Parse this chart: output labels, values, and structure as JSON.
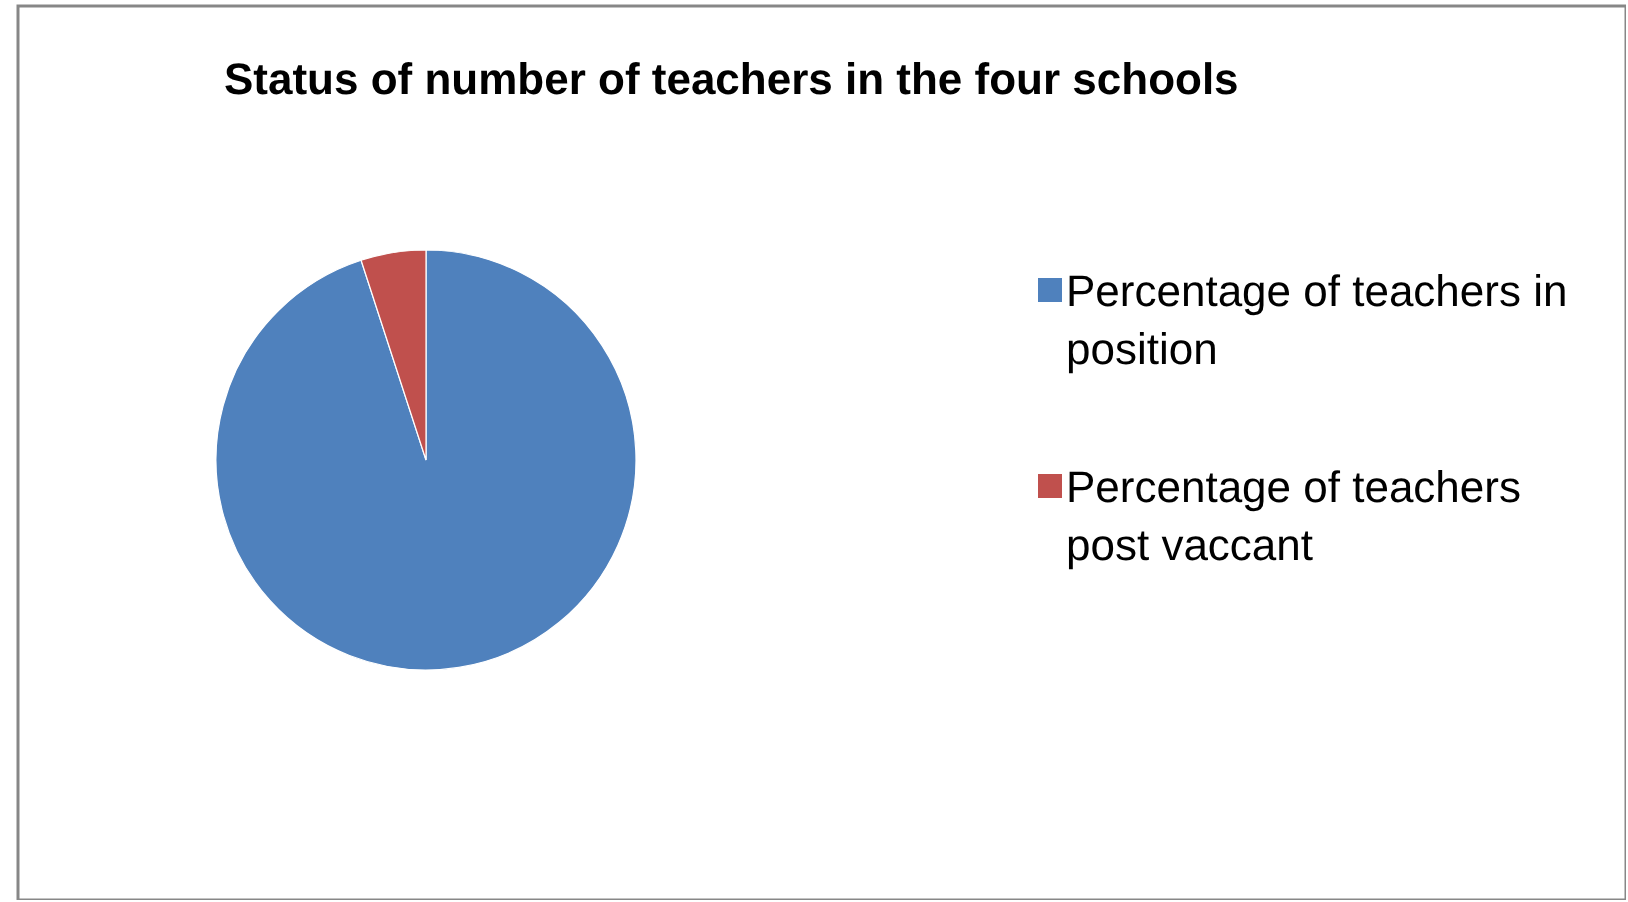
{
  "chart_data": {
    "type": "pie",
    "title": "Status of number of teachers in the four schools",
    "categories": [
      "Percentage of teachers in position",
      "Percentage of teachers post vaccant"
    ],
    "values": [
      95,
      5
    ],
    "colors": [
      "#4f81bd",
      "#c0504d"
    ],
    "legend": "right"
  }
}
